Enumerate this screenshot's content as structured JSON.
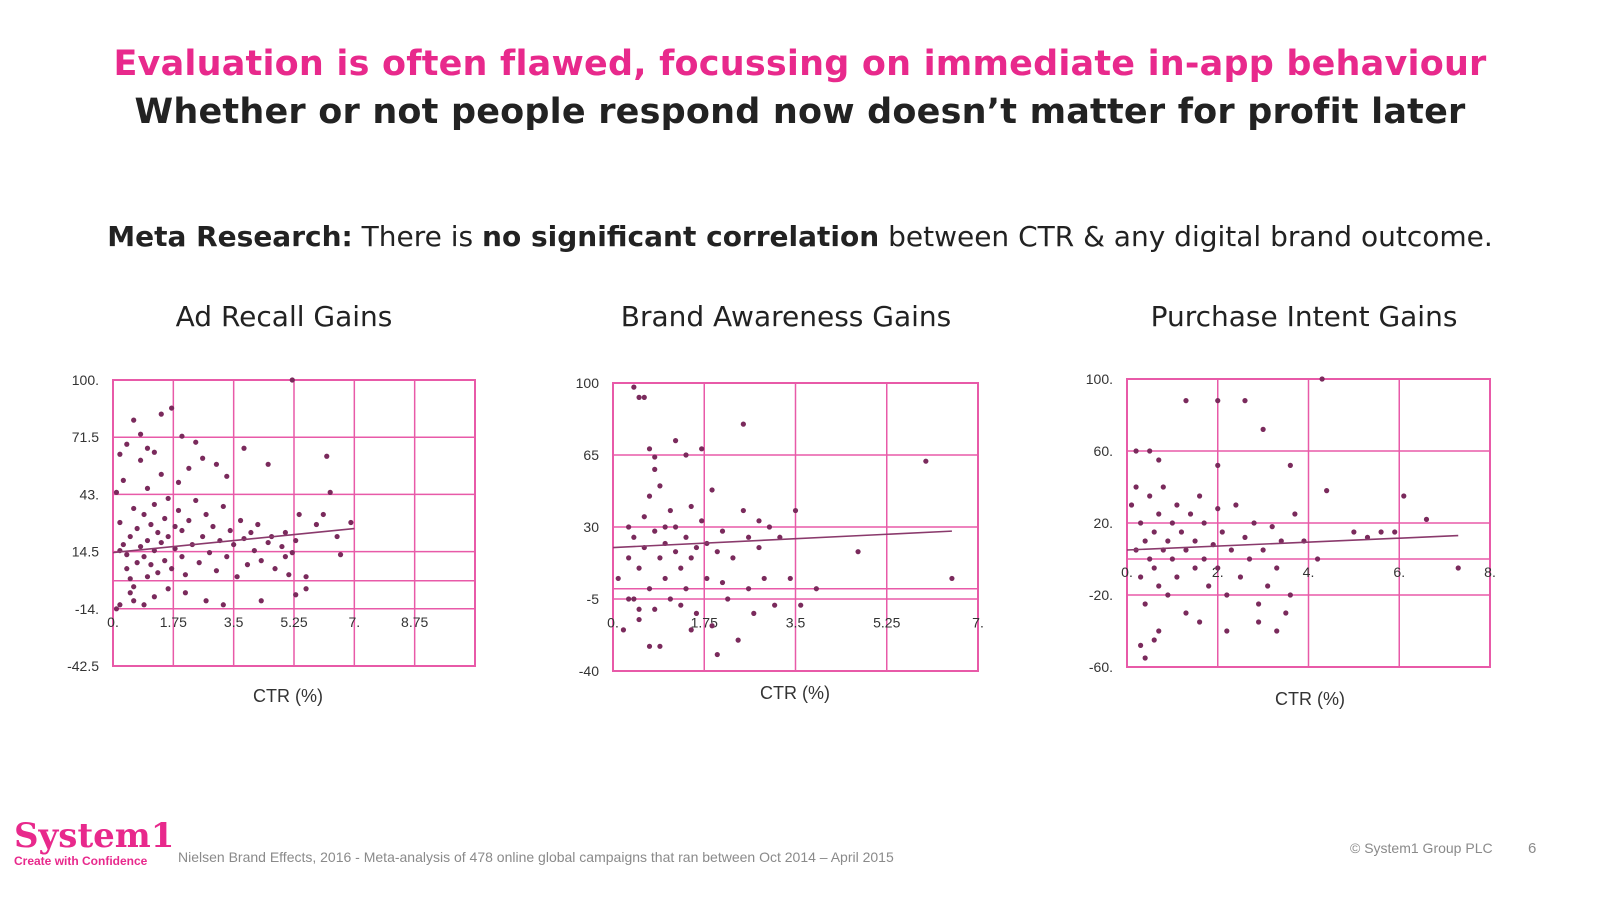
{
  "header": {
    "title": "Evaluation is often flawed, focussing on immediate in-app behaviour",
    "subtitle": "Whether or not people respond now doesn’t matter for profit later",
    "lead_bold_1": "Meta Research:",
    "lead_text_1": " There is ",
    "lead_bold_2": "no significant correlation",
    "lead_text_2": " between CTR & any digital brand outcome."
  },
  "colors": {
    "accent": "#e8298c",
    "grid": "#e85aa8",
    "points": "#7a2a5c",
    "text": "#222222",
    "footer": "#8a8a8a"
  },
  "chart_data": [
    {
      "type": "scatter",
      "title": "Ad Recall Gains",
      "xlabel": "CTR (%)",
      "ylabel": "",
      "xlim": [
        0,
        10.5
      ],
      "ylim": [
        -42.5,
        100
      ],
      "x_ticks": [
        0,
        1.75,
        3.5,
        5.25,
        7,
        8.75
      ],
      "x_tick_labels": [
        "0.",
        "1.75",
        "3.5",
        "5.25",
        "7.",
        "8.75"
      ],
      "y_ticks": [
        100,
        71.5,
        43,
        14.5,
        -14,
        -42.5
      ],
      "y_tick_labels": [
        "100.",
        "71.5",
        "43.",
        "14.5",
        "-14.",
        "-42.5"
      ],
      "x_axis_at": -14,
      "grid": true,
      "trend_line": [
        [
          0,
          14
        ],
        [
          7,
          26
        ]
      ],
      "points": [
        [
          0.1,
          44
        ],
        [
          0.2,
          29
        ],
        [
          0.3,
          50
        ],
        [
          0.2,
          15
        ],
        [
          0.3,
          18
        ],
        [
          0.4,
          13
        ],
        [
          0.4,
          6
        ],
        [
          0.5,
          22
        ],
        [
          0.5,
          1
        ],
        [
          0.6,
          36
        ],
        [
          0.6,
          -3
        ],
        [
          0.7,
          9
        ],
        [
          0.7,
          26
        ],
        [
          0.8,
          17
        ],
        [
          0.8,
          60
        ],
        [
          0.9,
          33
        ],
        [
          0.9,
          12
        ],
        [
          1,
          2
        ],
        [
          1,
          46
        ],
        [
          1,
          20
        ],
        [
          1.1,
          28
        ],
        [
          1.1,
          8
        ],
        [
          1.2,
          15
        ],
        [
          1.2,
          38
        ],
        [
          1.3,
          4
        ],
        [
          1.3,
          24
        ],
        [
          1.4,
          19
        ],
        [
          1.4,
          53
        ],
        [
          1.5,
          31
        ],
        [
          1.5,
          10
        ],
        [
          1.6,
          22
        ],
        [
          1.6,
          41
        ],
        [
          1.7,
          6
        ],
        [
          1.8,
          27
        ],
        [
          1.8,
          16
        ],
        [
          1.9,
          35
        ],
        [
          1.9,
          49
        ],
        [
          2,
          12
        ],
        [
          2,
          25
        ],
        [
          2.1,
          3
        ],
        [
          2.2,
          30
        ],
        [
          2.2,
          56
        ],
        [
          2.3,
          18
        ],
        [
          2.4,
          40
        ],
        [
          2.5,
          9
        ],
        [
          2.6,
          22
        ],
        [
          2.7,
          33
        ],
        [
          2.8,
          14
        ],
        [
          2.9,
          27
        ],
        [
          3,
          5
        ],
        [
          3.1,
          20
        ],
        [
          3.2,
          37
        ],
        [
          3.3,
          12
        ],
        [
          3.4,
          25
        ],
        [
          3.5,
          18
        ],
        [
          3.6,
          2
        ],
        [
          3.7,
          30
        ],
        [
          3.8,
          21
        ],
        [
          3.9,
          8
        ],
        [
          4,
          24
        ],
        [
          4.1,
          15
        ],
        [
          4.2,
          28
        ],
        [
          4.3,
          10
        ],
        [
          4.5,
          19
        ],
        [
          4.6,
          22
        ],
        [
          4.7,
          6
        ],
        [
          4.9,
          17
        ],
        [
          5,
          24
        ],
        [
          5,
          12
        ],
        [
          5.1,
          3
        ],
        [
          5.2,
          14
        ],
        [
          5.3,
          20
        ],
        [
          5.4,
          33
        ],
        [
          5.6,
          2
        ],
        [
          5.9,
          28
        ],
        [
          6.1,
          33
        ],
        [
          6.2,
          62
        ],
        [
          6.3,
          44
        ],
        [
          6.5,
          22
        ],
        [
          6.6,
          13
        ],
        [
          6.9,
          29
        ],
        [
          0.2,
          63
        ],
        [
          0.4,
          68
        ],
        [
          0.6,
          80
        ],
        [
          0.8,
          73
        ],
        [
          1,
          66
        ],
        [
          1.2,
          64
        ],
        [
          1.4,
          83
        ],
        [
          1.7,
          86
        ],
        [
          2,
          72
        ],
        [
          2.4,
          69
        ],
        [
          2.6,
          61
        ],
        [
          3,
          58
        ],
        [
          3.3,
          52
        ],
        [
          3.8,
          66
        ],
        [
          4.5,
          58
        ],
        [
          5.2,
          100
        ],
        [
          0.1,
          -14
        ],
        [
          0.2,
          -12
        ],
        [
          0.5,
          -6
        ],
        [
          0.6,
          -10
        ],
        [
          0.9,
          -12
        ],
        [
          1.2,
          -8
        ],
        [
          1.6,
          -4
        ],
        [
          2.1,
          -6
        ],
        [
          2.7,
          -10
        ],
        [
          3.2,
          -12
        ],
        [
          4.3,
          -10
        ],
        [
          5.3,
          -7
        ],
        [
          5.6,
          -4
        ]
      ]
    },
    {
      "type": "scatter",
      "title": "Brand Awareness Gains",
      "xlabel": "CTR (%)",
      "ylabel": "",
      "xlim": [
        0,
        7
      ],
      "ylim": [
        -40,
        100
      ],
      "x_ticks": [
        0,
        1.75,
        3.5,
        5.25,
        7
      ],
      "x_tick_labels": [
        "0.",
        "1.75",
        "3.5",
        "5.25",
        "7."
      ],
      "y_ticks": [
        100,
        65,
        30,
        -5,
        -40
      ],
      "y_tick_labels": [
        "100",
        "65",
        "30",
        "-5",
        "-40"
      ],
      "x_axis_at": -10,
      "grid": true,
      "trend_line": [
        [
          0,
          20
        ],
        [
          6.5,
          28
        ]
      ],
      "points": [
        [
          0.1,
          5
        ],
        [
          0.2,
          -20
        ],
        [
          0.3,
          30
        ],
        [
          0.3,
          15
        ],
        [
          0.4,
          -5
        ],
        [
          0.4,
          25
        ],
        [
          0.5,
          10
        ],
        [
          0.5,
          -15
        ],
        [
          0.6,
          35
        ],
        [
          0.6,
          20
        ],
        [
          0.7,
          0
        ],
        [
          0.7,
          45
        ],
        [
          0.8,
          28
        ],
        [
          0.8,
          -10
        ],
        [
          0.9,
          15
        ],
        [
          0.9,
          50
        ],
        [
          1,
          22
        ],
        [
          1,
          5
        ],
        [
          1.1,
          38
        ],
        [
          1.1,
          -5
        ],
        [
          1.2,
          18
        ],
        [
          1.2,
          30
        ],
        [
          1.3,
          10
        ],
        [
          1.3,
          -8
        ],
        [
          1.4,
          25
        ],
        [
          1.4,
          0
        ],
        [
          1.5,
          40
        ],
        [
          1.5,
          15
        ],
        [
          1.6,
          20
        ],
        [
          1.6,
          -12
        ],
        [
          1.7,
          33
        ],
        [
          1.8,
          5
        ],
        [
          1.8,
          22
        ],
        [
          1.9,
          -18
        ],
        [
          2,
          18
        ],
        [
          2.1,
          28
        ],
        [
          2.1,
          3
        ],
        [
          2.2,
          -5
        ],
        [
          2.3,
          15
        ],
        [
          2.4,
          -25
        ],
        [
          2.5,
          38
        ],
        [
          2.6,
          0
        ],
        [
          2.6,
          25
        ],
        [
          2.7,
          -12
        ],
        [
          2.8,
          20
        ],
        [
          2.8,
          33
        ],
        [
          2.9,
          5
        ],
        [
          3,
          30
        ],
        [
          3.1,
          -8
        ],
        [
          3.2,
          25
        ],
        [
          3.4,
          5
        ],
        [
          3.5,
          38
        ],
        [
          3.6,
          -8
        ],
        [
          3.9,
          0
        ],
        [
          4.7,
          18
        ],
        [
          6.0,
          62
        ],
        [
          6.5,
          5
        ],
        [
          0.4,
          98
        ],
        [
          0.5,
          93
        ],
        [
          0.6,
          93
        ],
        [
          0.7,
          68
        ],
        [
          0.8,
          64
        ],
        [
          0.8,
          58
        ],
        [
          1.0,
          30
        ],
        [
          1.2,
          72
        ],
        [
          1.4,
          65
        ],
        [
          1.7,
          68
        ],
        [
          1.9,
          48
        ],
        [
          2.5,
          80
        ],
        [
          0.3,
          -5
        ],
        [
          0.5,
          -10
        ],
        [
          0.7,
          -28
        ],
        [
          0.9,
          -28
        ],
        [
          1.5,
          -20
        ],
        [
          2.0,
          -32
        ]
      ]
    },
    {
      "type": "scatter",
      "title": "Purchase Intent Gains",
      "xlabel": "CTR (%)",
      "ylabel": "",
      "xlim": [
        0,
        8
      ],
      "ylim": [
        -60,
        100
      ],
      "x_ticks": [
        0,
        2,
        4,
        6,
        8
      ],
      "x_tick_labels": [
        "0.",
        "2.",
        "4.",
        "6.",
        "8."
      ],
      "y_ticks": [
        100,
        60,
        20,
        -20,
        -60
      ],
      "y_tick_labels": [
        "100.",
        "60.",
        "20.",
        "-20.",
        "-60."
      ],
      "x_axis_at": 0,
      "grid": true,
      "trend_line": [
        [
          0,
          5
        ],
        [
          7.3,
          13
        ]
      ],
      "points": [
        [
          0.1,
          30
        ],
        [
          0.2,
          5
        ],
        [
          0.2,
          40
        ],
        [
          0.3,
          -10
        ],
        [
          0.3,
          20
        ],
        [
          0.4,
          10
        ],
        [
          0.4,
          -25
        ],
        [
          0.5,
          35
        ],
        [
          0.5,
          0
        ],
        [
          0.6,
          15
        ],
        [
          0.6,
          -5
        ],
        [
          0.7,
          25
        ],
        [
          0.7,
          -15
        ],
        [
          0.8,
          5
        ],
        [
          0.8,
          40
        ],
        [
          0.9,
          10
        ],
        [
          0.9,
          -20
        ],
        [
          1,
          20
        ],
        [
          1,
          0
        ],
        [
          1.1,
          30
        ],
        [
          1.1,
          -10
        ],
        [
          1.2,
          15
        ],
        [
          1.3,
          5
        ],
        [
          1.3,
          -30
        ],
        [
          1.4,
          25
        ],
        [
          1.5,
          -5
        ],
        [
          1.5,
          10
        ],
        [
          1.6,
          35
        ],
        [
          1.7,
          0
        ],
        [
          1.7,
          20
        ],
        [
          1.8,
          -15
        ],
        [
          1.9,
          8
        ],
        [
          2,
          28
        ],
        [
          2,
          -5
        ],
        [
          2.1,
          15
        ],
        [
          2.2,
          -20
        ],
        [
          2.3,
          5
        ],
        [
          2.4,
          30
        ],
        [
          2.5,
          -10
        ],
        [
          2.6,
          12
        ],
        [
          2.7,
          0
        ],
        [
          2.8,
          20
        ],
        [
          2.9,
          -25
        ],
        [
          3,
          5
        ],
        [
          3.1,
          -15
        ],
        [
          3.2,
          18
        ],
        [
          3.3,
          -5
        ],
        [
          3.4,
          10
        ],
        [
          3.6,
          -20
        ],
        [
          3.7,
          25
        ],
        [
          3.9,
          10
        ],
        [
          4.2,
          0
        ],
        [
          4.4,
          38
        ],
        [
          5,
          15
        ],
        [
          5.3,
          12
        ],
        [
          5.6,
          15
        ],
        [
          5.9,
          15
        ],
        [
          6.1,
          35
        ],
        [
          6.6,
          22
        ],
        [
          7.3,
          -5
        ],
        [
          0.2,
          60
        ],
        [
          0.5,
          60
        ],
        [
          0.7,
          55
        ],
        [
          1.3,
          88
        ],
        [
          2.0,
          52
        ],
        [
          2.6,
          88
        ],
        [
          3.0,
          72
        ],
        [
          3.6,
          52
        ],
        [
          4.3,
          100
        ],
        [
          2.0,
          88
        ],
        [
          0.3,
          -48
        ],
        [
          0.4,
          -55
        ],
        [
          0.6,
          -45
        ],
        [
          0.7,
          -40
        ],
        [
          1.6,
          -35
        ],
        [
          2.2,
          -40
        ],
        [
          2.9,
          -35
        ],
        [
          3.3,
          -40
        ],
        [
          3.5,
          -30
        ]
      ]
    }
  ],
  "footer": {
    "logo_text": "System1",
    "logo_tagline": "Create with Confidence",
    "source": "Nielsen Brand Effects,  2016 - Meta-analysis of 478 online global campaigns that ran between Oct 2014 – April 2015",
    "copyright": "© System1 Group PLC",
    "page_number": "6"
  }
}
